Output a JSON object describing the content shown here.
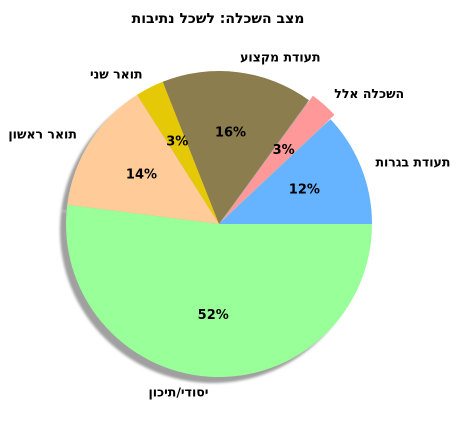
{
  "chart_data": {
    "type": "pie",
    "title": "מצב השכלה: לשכל נתיבות",
    "categories": [
      "תעודת בגרות",
      "השכלה אלל",
      "תעודת מקצוע",
      "תואר שני",
      "תואר ראשון",
      "יסודי/תיכון"
    ],
    "values": [
      12,
      3,
      16,
      3,
      14,
      52
    ],
    "percent_labels": [
      "12%",
      "3%",
      "16%",
      "3%",
      "14%",
      "52%"
    ],
    "colors": [
      "#66b3ff",
      "#ff9999",
      "#8b7d4e",
      "#e5c806",
      "#ffcc99",
      "#99ff99"
    ],
    "exploded": [
      false,
      true,
      false,
      false,
      false,
      false
    ],
    "shadow": true,
    "start_angle_deg": 0,
    "direction": "counterclockwise",
    "legend": "none"
  }
}
